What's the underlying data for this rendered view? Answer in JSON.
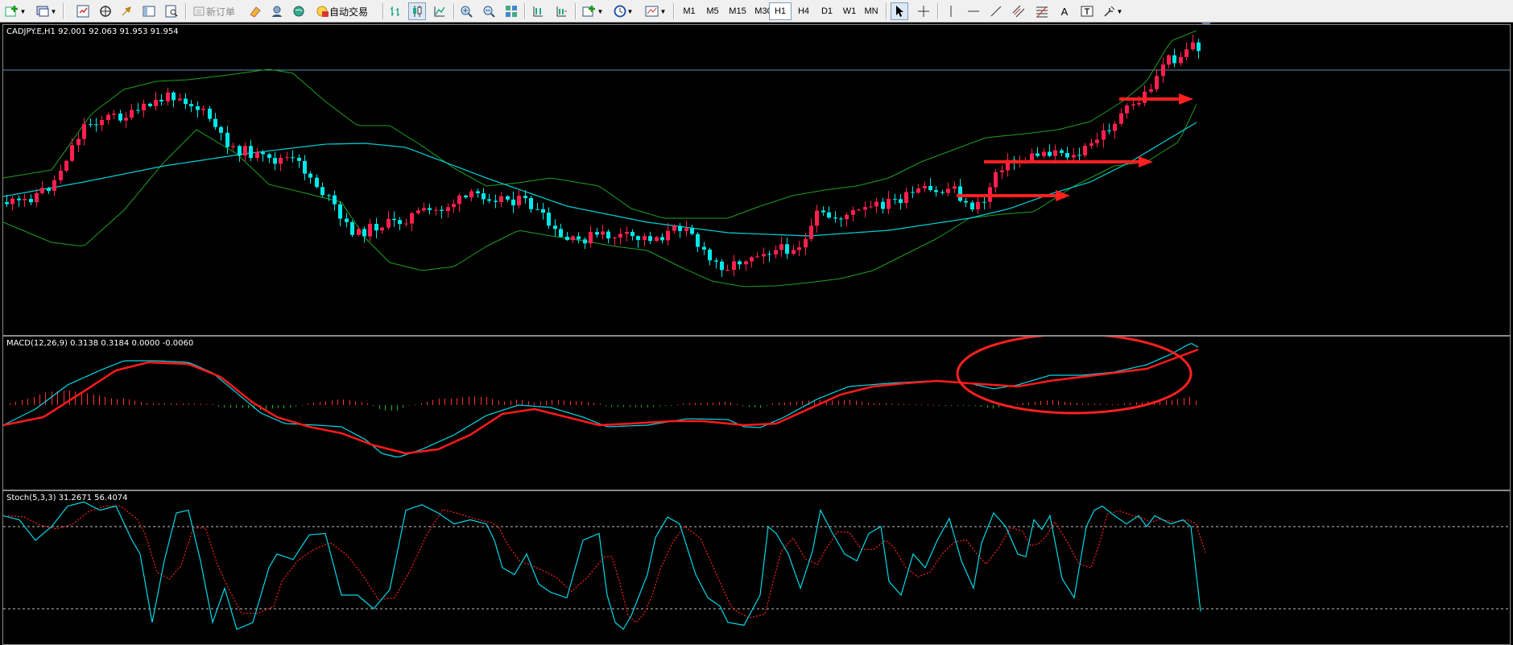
{
  "toolbar": {
    "new_order": "新订单",
    "auto_trading": "自动交易",
    "timeframes": [
      "M1",
      "M5",
      "M15",
      "M30",
      "H1",
      "H4",
      "D1",
      "W1",
      "MN"
    ],
    "active_timeframe": "H1",
    "text_tool": "A",
    "icons": [
      "new-chart-icon",
      "profiles-icon",
      "market-watch-icon",
      "data-window-icon",
      "navigator-icon",
      "terminal-icon",
      "strategy-tester-icon",
      "metaeditor-icon",
      "expert-icon",
      "community-icon",
      "bar-chart-icon",
      "candlestick-icon",
      "line-chart-icon",
      "zoom-in-icon",
      "zoom-out-icon",
      "tile-windows-icon",
      "chart-shift-icon",
      "autoscroll-icon",
      "indicators-icon",
      "periods-icon",
      "templates-icon",
      "cursor-icon",
      "crosshair-icon",
      "vertical-line-icon",
      "horizontal-line-icon",
      "trendline-icon",
      "equidistant-channel-icon",
      "fibonacci-icon",
      "text-icon",
      "text-label-icon",
      "arrows-icon"
    ]
  },
  "main_chart": {
    "symbol_info": "CADJPY.E,H1  92.001 92.063 91.953 91.954",
    "symbol": "CADJPY.E",
    "timeframe": "H1",
    "open": 92.001,
    "high": 92.063,
    "low": 91.953,
    "close": 91.954,
    "colors": {
      "bull": "#ff2050",
      "bear": "#00e8e8",
      "bollinger": "#1fa01f",
      "ma": "#00c8d8",
      "annotation": "#ff2020",
      "price_line": "#5f8fb0"
    }
  },
  "macd": {
    "label": "MACD(12,26,9) 0.3138 0.3184 0.0000 -0.0060",
    "colors": {
      "macd_line": "#00d8e8",
      "signal_line": "#ff1a1a",
      "hist_pos": "#ff3030",
      "hist_neg": "#22b022"
    }
  },
  "stoch": {
    "label": "Stoch(5,3,3) 31.2671 56.4074",
    "levels": [
      80,
      20
    ],
    "colors": {
      "main": "#00d8e8",
      "signal": "#ff2020",
      "level": "#c0c0c0"
    }
  }
}
